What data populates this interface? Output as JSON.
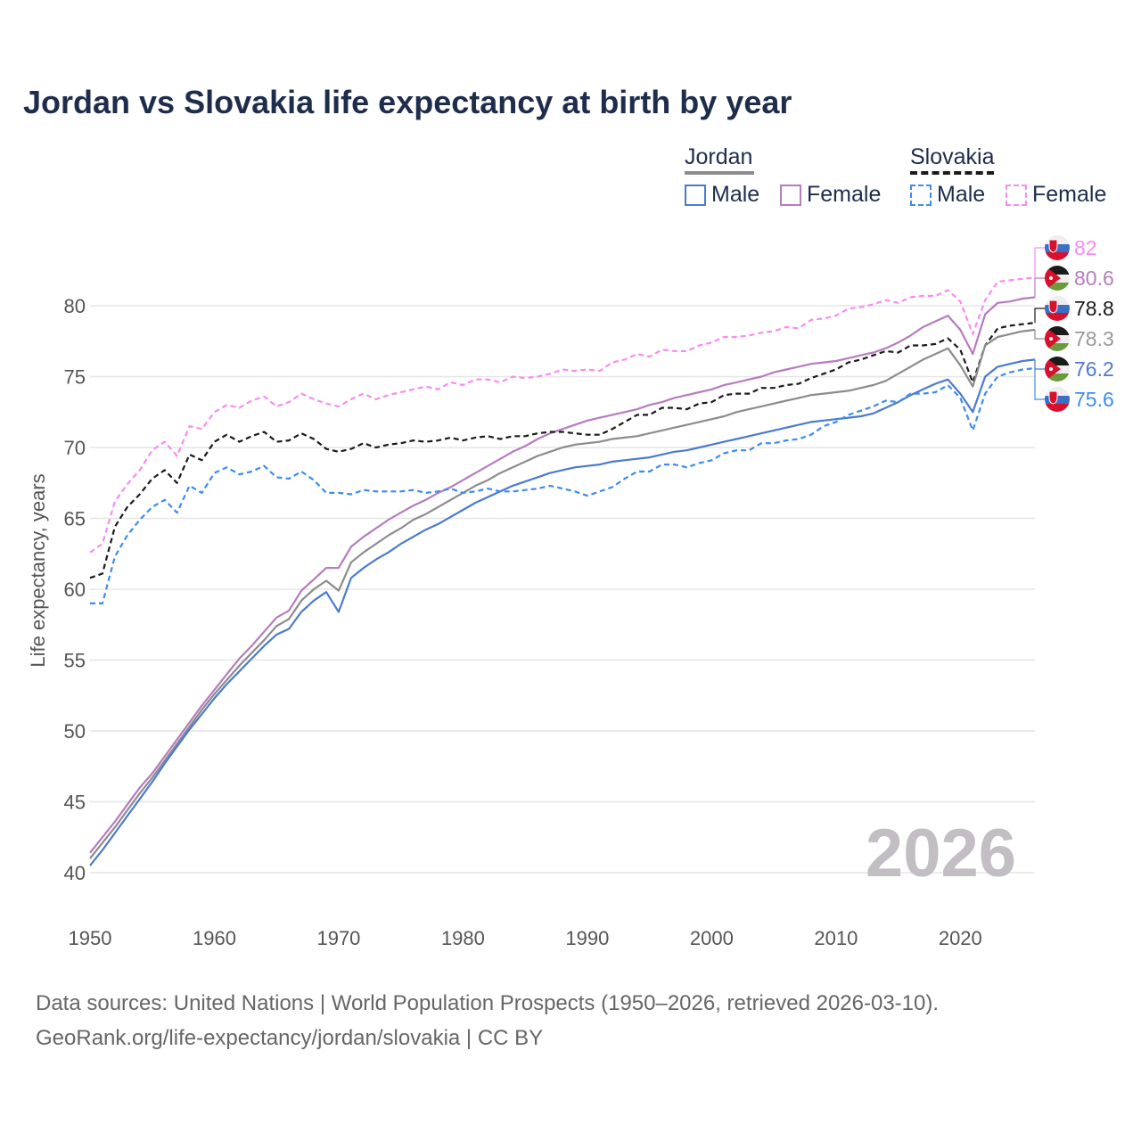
{
  "chart_data": {
    "type": "line",
    "title": "Jordan vs Slovakia life expectancy at birth by year",
    "xlabel": "",
    "ylabel": "Life expectancy, years",
    "xlim": [
      1950,
      2026
    ],
    "ylim": [
      38,
      84
    ],
    "xticks": [
      "1950",
      "1960",
      "1970",
      "1980",
      "1990",
      "2000",
      "2010",
      "2020"
    ],
    "yticks": [
      "40",
      "45",
      "50",
      "55",
      "60",
      "65",
      "70",
      "75",
      "80"
    ],
    "grid": true,
    "year_watermark": "2026",
    "legend": {
      "placement": "top-right",
      "groups": [
        {
          "name": "Jordan",
          "items": [
            "Male",
            "Female"
          ]
        },
        {
          "name": "Slovakia",
          "items": [
            "Male",
            "Female"
          ]
        }
      ]
    },
    "x_start": 1950,
    "series": [
      {
        "name": "Slovakia Female",
        "country": "Slovakia",
        "color": "#f78cf2",
        "dashed": true,
        "end_label": "82",
        "flag": "slovakia",
        "values": [
          62.6,
          63.2,
          66.2,
          67.4,
          68.4,
          69.8,
          70.4,
          69.4,
          71.5,
          71.3,
          72.5,
          73.0,
          72.8,
          73.3,
          73.6,
          72.9,
          73.2,
          73.8,
          73.4,
          73.1,
          72.9,
          73.4,
          73.8,
          73.4,
          73.7,
          73.9,
          74.1,
          74.3,
          74.1,
          74.6,
          74.4,
          74.8,
          74.8,
          74.6,
          75.0,
          74.9,
          75.0,
          75.2,
          75.5,
          75.4,
          75.5,
          75.4,
          76.0,
          76.2,
          76.6,
          76.4,
          76.9,
          76.8,
          76.8,
          77.2,
          77.4,
          77.8,
          77.8,
          77.9,
          78.1,
          78.2,
          78.5,
          78.4,
          79.0,
          79.1,
          79.3,
          79.8,
          79.9,
          80.1,
          80.4,
          80.2,
          80.6,
          80.7,
          80.7,
          81.1,
          80.3,
          78.0,
          80.4,
          81.7,
          81.8,
          81.9,
          82.0
        ]
      },
      {
        "name": "Jordan Female",
        "country": "Jordan",
        "color": "#b67cbd",
        "dashed": false,
        "end_label": "80.6",
        "flag": "jordan",
        "values": [
          41.4,
          42.5,
          43.6,
          44.8,
          46.0,
          47.0,
          48.2,
          49.4,
          50.6,
          51.8,
          52.9,
          54.0,
          55.1,
          56.0,
          57.0,
          58.0,
          58.5,
          59.9,
          60.7,
          61.5,
          61.5,
          63.0,
          63.7,
          64.3,
          64.9,
          65.4,
          65.9,
          66.3,
          66.8,
          67.2,
          67.7,
          68.2,
          68.7,
          69.2,
          69.7,
          70.1,
          70.6,
          71.0,
          71.3,
          71.6,
          71.9,
          72.1,
          72.3,
          72.5,
          72.7,
          73.0,
          73.2,
          73.5,
          73.7,
          73.9,
          74.1,
          74.4,
          74.6,
          74.8,
          75.0,
          75.3,
          75.5,
          75.7,
          75.9,
          76.0,
          76.1,
          76.3,
          76.5,
          76.7,
          77.0,
          77.4,
          77.9,
          78.5,
          78.9,
          79.3,
          78.3,
          76.6,
          79.4,
          80.2,
          80.3,
          80.5,
          80.6
        ]
      },
      {
        "name": "Slovakia",
        "country": "Slovakia",
        "color": "#1a1a1a",
        "dashed": true,
        "end_label": "78.8",
        "flag": "slovakia",
        "values": [
          60.8,
          61.1,
          64.4,
          65.8,
          66.7,
          67.8,
          68.4,
          67.5,
          69.5,
          69.1,
          70.4,
          70.9,
          70.4,
          70.8,
          71.1,
          70.4,
          70.5,
          71.0,
          70.6,
          69.9,
          69.7,
          69.9,
          70.3,
          70.0,
          70.2,
          70.3,
          70.5,
          70.4,
          70.5,
          70.7,
          70.5,
          70.7,
          70.8,
          70.6,
          70.8,
          70.8,
          71.0,
          71.1,
          71.1,
          71.0,
          70.9,
          70.9,
          71.3,
          71.8,
          72.3,
          72.3,
          72.8,
          72.8,
          72.7,
          73.1,
          73.2,
          73.7,
          73.8,
          73.8,
          74.2,
          74.2,
          74.4,
          74.5,
          74.9,
          75.2,
          75.5,
          76.0,
          76.2,
          76.5,
          76.8,
          76.7,
          77.2,
          77.2,
          77.3,
          77.7,
          76.9,
          74.6,
          77.2,
          78.4,
          78.6,
          78.7,
          78.8
        ]
      },
      {
        "name": "Jordan",
        "country": "Jordan",
        "color": "#8c8c8c",
        "dashed": false,
        "end_label": "78.3",
        "flag": "jordan",
        "values": [
          41.0,
          42.1,
          43.2,
          44.4,
          45.6,
          46.7,
          47.9,
          49.1,
          50.3,
          51.5,
          52.6,
          53.6,
          54.6,
          55.5,
          56.4,
          57.4,
          57.9,
          59.2,
          60.0,
          60.6,
          59.9,
          61.9,
          62.6,
          63.2,
          63.8,
          64.3,
          64.9,
          65.3,
          65.8,
          66.3,
          66.8,
          67.3,
          67.7,
          68.2,
          68.6,
          69.0,
          69.4,
          69.7,
          70.0,
          70.2,
          70.3,
          70.4,
          70.6,
          70.7,
          70.8,
          71.0,
          71.2,
          71.4,
          71.6,
          71.8,
          72.0,
          72.2,
          72.5,
          72.7,
          72.9,
          73.1,
          73.3,
          73.5,
          73.7,
          73.8,
          73.9,
          74.0,
          74.2,
          74.4,
          74.7,
          75.2,
          75.7,
          76.2,
          76.6,
          77.0,
          75.8,
          74.3,
          77.2,
          77.8,
          78.0,
          78.2,
          78.3
        ]
      },
      {
        "name": "Jordan Male",
        "country": "Jordan",
        "color": "#4a7bcf",
        "dashed": false,
        "end_label": "76.2",
        "flag": "jordan",
        "values": [
          40.5,
          41.6,
          42.8,
          44.0,
          45.2,
          46.4,
          47.7,
          48.9,
          50.1,
          51.2,
          52.3,
          53.3,
          54.2,
          55.1,
          56.0,
          56.8,
          57.2,
          58.4,
          59.2,
          59.8,
          58.4,
          60.8,
          61.5,
          62.1,
          62.6,
          63.2,
          63.7,
          64.2,
          64.6,
          65.1,
          65.6,
          66.1,
          66.5,
          66.9,
          67.3,
          67.6,
          67.9,
          68.2,
          68.4,
          68.6,
          68.7,
          68.8,
          69.0,
          69.1,
          69.2,
          69.3,
          69.5,
          69.7,
          69.8,
          70.0,
          70.2,
          70.4,
          70.6,
          70.8,
          71.0,
          71.2,
          71.4,
          71.6,
          71.8,
          71.9,
          72.0,
          72.1,
          72.2,
          72.4,
          72.8,
          73.2,
          73.7,
          74.1,
          74.5,
          74.8,
          73.8,
          72.5,
          75.0,
          75.7,
          75.9,
          76.1,
          76.2
        ]
      },
      {
        "name": "Slovakia Male",
        "country": "Slovakia",
        "color": "#3d8cf0",
        "dashed": true,
        "end_label": "75.6",
        "flag": "slovakia",
        "values": [
          59.0,
          59.0,
          62.3,
          63.8,
          64.9,
          65.8,
          66.3,
          65.4,
          67.3,
          66.8,
          68.2,
          68.6,
          68.1,
          68.3,
          68.7,
          67.9,
          67.8,
          68.3,
          67.7,
          66.8,
          66.8,
          66.7,
          67.0,
          66.9,
          66.9,
          66.9,
          67.0,
          66.8,
          66.9,
          67.1,
          66.8,
          66.9,
          67.1,
          66.9,
          66.9,
          67.0,
          67.1,
          67.3,
          67.1,
          66.9,
          66.6,
          66.9,
          67.2,
          67.8,
          68.3,
          68.3,
          68.8,
          68.8,
          68.6,
          68.9,
          69.1,
          69.6,
          69.8,
          69.8,
          70.3,
          70.3,
          70.5,
          70.6,
          70.9,
          71.5,
          71.8,
          72.3,
          72.6,
          72.9,
          73.3,
          73.2,
          73.8,
          73.8,
          73.9,
          74.4,
          73.5,
          71.2,
          73.8,
          75.0,
          75.3,
          75.5,
          75.6
        ]
      }
    ]
  },
  "footer": {
    "line1": "Data sources: United Nations | World Population Prospects (1950–2026, retrieved 2026-03-10).",
    "line2": "GeoRank.org/life-expectancy/jordan/slovakia | CC BY"
  }
}
